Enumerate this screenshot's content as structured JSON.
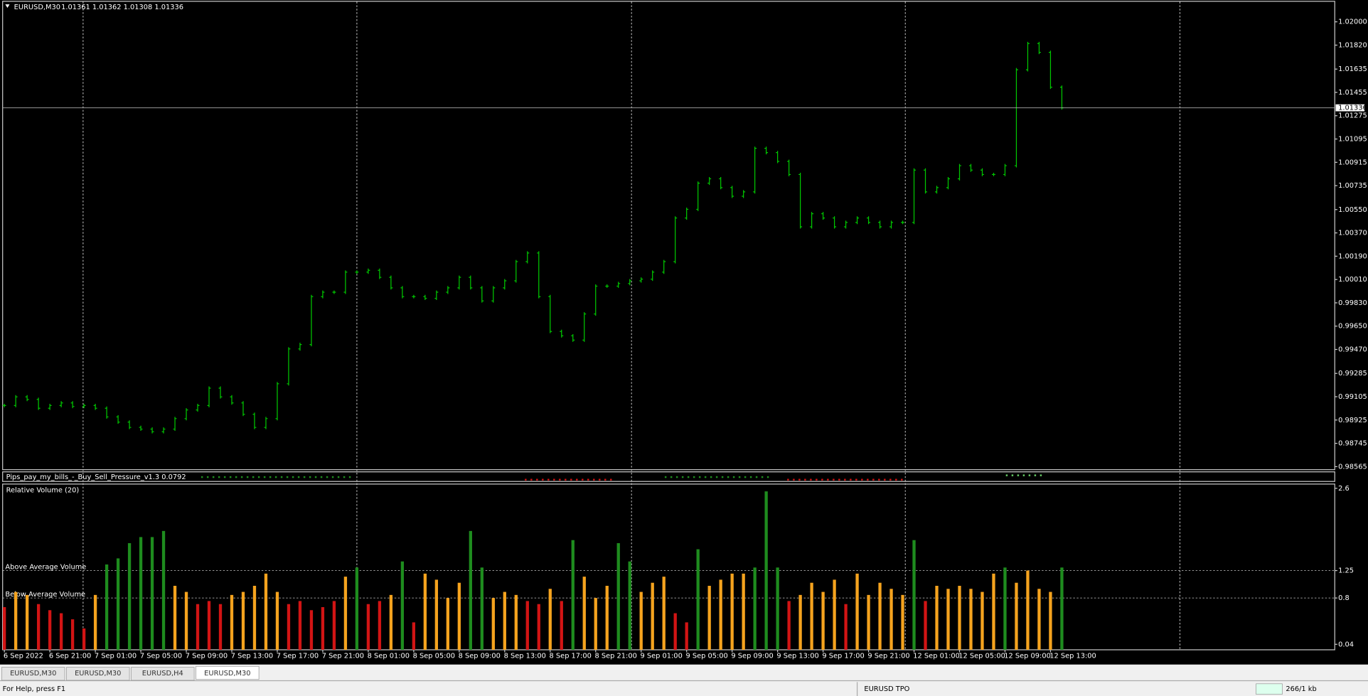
{
  "header": {
    "symbol": "EURUSD,M30",
    "quote": "1.01361 1.01362 1.01308 1.01336"
  },
  "chart_data": [
    {
      "type": "ohlc",
      "current_price": 1.01336,
      "x": [
        0,
        2,
        4,
        6,
        8,
        10,
        12,
        14,
        16,
        18,
        20,
        22,
        24,
        26,
        28,
        30,
        32,
        34,
        36,
        38,
        40,
        42,
        44,
        46,
        48,
        50,
        52,
        54,
        56,
        58,
        60,
        62,
        64,
        66,
        68,
        70,
        72,
        74,
        76,
        78,
        80,
        82,
        84,
        86,
        88,
        90,
        92,
        94,
        96,
        98,
        100,
        102,
        104,
        106,
        108,
        110,
        112,
        114,
        116,
        118,
        120,
        122,
        124,
        126,
        128,
        130,
        132,
        134,
        136,
        138,
        140,
        142,
        144,
        146,
        148,
        150,
        152,
        154,
        156,
        158,
        160,
        162,
        164,
        166,
        168,
        170,
        172,
        174,
        176,
        178,
        180,
        182,
        184,
        186
      ],
      "close": [
        0.99037,
        0.99104,
        0.99084,
        0.99016,
        0.99037,
        0.99057,
        0.9903,
        0.99037,
        0.99016,
        0.98949,
        0.98909,
        0.98868,
        0.98855,
        0.98835,
        0.98855,
        0.98936,
        0.99003,
        0.99037,
        0.99171,
        0.99104,
        0.99057,
        0.98969,
        0.98868,
        0.98936,
        0.99205,
        0.99474,
        0.99508,
        0.99878,
        0.99912,
        0.99912,
        1.00067,
        1.00067,
        1.00081,
        1.00027,
        0.99946,
        0.99878,
        0.99878,
        0.99865,
        0.99912,
        0.99946,
        1.00027,
        0.99946,
        0.99845,
        0.99946,
        1.0,
        1.00148,
        1.00215,
        0.99878,
        0.99609,
        0.99575,
        0.99542,
        0.99744,
        0.99959,
        0.99959,
        0.99979,
        1.0,
        1.00013,
        1.00067,
        1.00148,
        1.00485,
        1.00552,
        1.00754,
        1.00788,
        1.0072,
        1.00653,
        1.00687,
        1.01023,
        1.0099,
        1.00922,
        1.00821,
        1.00417,
        1.00518,
        1.00485,
        1.00417,
        1.00451,
        1.00485,
        1.00451,
        1.00417,
        1.00451,
        1.00451,
        1.00855,
        1.00687,
        1.0072,
        1.00788,
        1.00889,
        1.00855,
        1.00821,
        1.00821,
        1.00889,
        1.0163,
        1.01832,
        1.01764,
        1.01495,
        1.01336
      ],
      "color": "#00c800",
      "xlim": [
        0,
        234
      ],
      "ylim": [
        0.98545,
        1.02155
      ],
      "yticks": [
        {
          "value": 1.02,
          "label": "1.02000"
        },
        {
          "value": 1.0182,
          "label": "1.01820"
        },
        {
          "value": 1.01635,
          "label": "1.01635"
        },
        {
          "value": 1.01455,
          "label": "1.01455"
        },
        {
          "value": 1.01275,
          "label": "1.01275"
        },
        {
          "value": 1.01095,
          "label": "1.01095"
        },
        {
          "value": 1.00915,
          "label": "1.00915"
        },
        {
          "value": 1.00735,
          "label": "1.00735"
        },
        {
          "value": 1.0055,
          "label": "1.00550"
        },
        {
          "value": 1.0037,
          "label": "1.00370"
        },
        {
          "value": 1.0019,
          "label": "1.00190"
        },
        {
          "value": 1.0001,
          "label": "1.00010"
        },
        {
          "value": 0.9983,
          "label": "0.99830"
        },
        {
          "value": 0.9965,
          "label": "0.99650"
        },
        {
          "value": 0.9947,
          "label": "0.99470"
        },
        {
          "value": 0.99285,
          "label": "0.99285"
        },
        {
          "value": 0.99105,
          "label": "0.99105"
        },
        {
          "value": 0.98925,
          "label": "0.98925"
        },
        {
          "value": 0.98745,
          "label": "0.98745"
        },
        {
          "value": 0.98565,
          "label": "0.98565"
        }
      ]
    },
    {
      "type": "strip",
      "title": "Pips_pay_my_bills_-_Buy_Sell_Pressure_v1.3 0.0792"
    },
    {
      "type": "bar",
      "title": "Relative Volume (20)",
      "x": [
        0,
        2,
        4,
        6,
        8,
        10,
        12,
        14,
        16,
        18,
        20,
        22,
        24,
        26,
        28,
        30,
        32,
        34,
        36,
        38,
        40,
        42,
        44,
        46,
        48,
        50,
        52,
        54,
        56,
        58,
        60,
        62,
        64,
        66,
        68,
        70,
        72,
        74,
        76,
        78,
        80,
        82,
        84,
        86,
        88,
        90,
        92,
        94,
        96,
        98,
        100,
        102,
        104,
        106,
        108,
        110,
        112,
        114,
        116,
        118,
        120,
        122,
        124,
        126,
        128,
        130,
        132,
        134,
        136,
        138,
        140,
        142,
        144,
        146,
        148,
        150,
        152,
        154,
        156,
        158,
        160,
        162,
        164,
        166,
        168,
        170,
        172,
        174,
        176,
        178,
        180,
        182,
        184,
        186
      ],
      "values": [
        0.65,
        0.9,
        0.85,
        0.7,
        0.6,
        0.55,
        0.45,
        0.3,
        0.85,
        1.35,
        1.45,
        1.7,
        1.8,
        1.8,
        1.9,
        1.0,
        0.9,
        0.7,
        0.75,
        0.7,
        0.85,
        0.9,
        1.0,
        1.2,
        0.9,
        0.7,
        0.75,
        0.6,
        0.65,
        0.75,
        1.15,
        1.3,
        0.7,
        0.75,
        0.85,
        1.4,
        0.4,
        1.2,
        1.1,
        0.8,
        1.05,
        1.9,
        1.3,
        0.8,
        0.9,
        0.85,
        0.75,
        0.7,
        0.95,
        0.75,
        1.75,
        1.15,
        0.8,
        1.0,
        1.7,
        1.4,
        0.9,
        1.05,
        1.15,
        0.55,
        0.4,
        1.6,
        1.0,
        1.1,
        1.2,
        1.2,
        1.3,
        2.55,
        1.3,
        0.75,
        0.85,
        1.05,
        0.9,
        1.1,
        0.7,
        1.2,
        0.85,
        1.05,
        0.95,
        0.85,
        1.75,
        0.75,
        1.0,
        0.95,
        1.0,
        0.95,
        0.9,
        1.2,
        1.3,
        1.05,
        1.25,
        0.95,
        0.9,
        1.3
      ],
      "levels": [
        {
          "value": 1.25,
          "label": "Above Average Volume"
        },
        {
          "value": 0.8,
          "label": "Below Average Volume"
        }
      ],
      "colors": {
        "high": "#1e8c1e",
        "mid": "#f5a31e",
        "low": "#d21414"
      },
      "xlim": [
        0,
        234
      ],
      "ylim": [
        -0.05,
        2.67
      ],
      "yticks": [
        0.04,
        0.8,
        1.25,
        2.6
      ],
      "xticks": [
        {
          "value": 0,
          "label": "6 Sep 2022"
        },
        {
          "value": 8,
          "label": "6 Sep 21:00"
        },
        {
          "value": 16,
          "label": "7 Sep 01:00"
        },
        {
          "value": 24,
          "label": "7 Sep 05:00"
        },
        {
          "value": 32,
          "label": "7 Sep 09:00"
        },
        {
          "value": 40,
          "label": "7 Sep 13:00"
        },
        {
          "value": 48,
          "label": "7 Sep 17:00"
        },
        {
          "value": 56,
          "label": "7 Sep 21:00"
        },
        {
          "value": 64,
          "label": "8 Sep 01:00"
        },
        {
          "value": 72,
          "label": "8 Sep 05:00"
        },
        {
          "value": 80,
          "label": "8 Sep 09:00"
        },
        {
          "value": 88,
          "label": "8 Sep 13:00"
        },
        {
          "value": 96,
          "label": "8 Sep 17:00"
        },
        {
          "value": 104,
          "label": "8 Sep 21:00"
        },
        {
          "value": 112,
          "label": "9 Sep 01:00"
        },
        {
          "value": 120,
          "label": "9 Sep 05:00"
        },
        {
          "value": 128,
          "label": "9 Sep 09:00"
        },
        {
          "value": 136,
          "label": "9 Sep 13:00"
        },
        {
          "value": 144,
          "label": "9 Sep 17:00"
        },
        {
          "value": 152,
          "label": "9 Sep 21:00"
        },
        {
          "value": 160,
          "label": "12 Sep 01:00"
        },
        {
          "value": 168,
          "label": "12 Sep 05:00"
        },
        {
          "value": 176,
          "label": "12 Sep 09:00"
        },
        {
          "value": 184,
          "label": "12 Sep 13:00"
        }
      ]
    }
  ],
  "tabs": [
    "EURUSD,M30",
    "EURUSD,M30",
    "EURUSD,H4",
    "EURUSD,M30"
  ],
  "status": {
    "help": "For Help, press F1",
    "profile": "EURUSD TPO",
    "traffic": "266/1 kb"
  }
}
